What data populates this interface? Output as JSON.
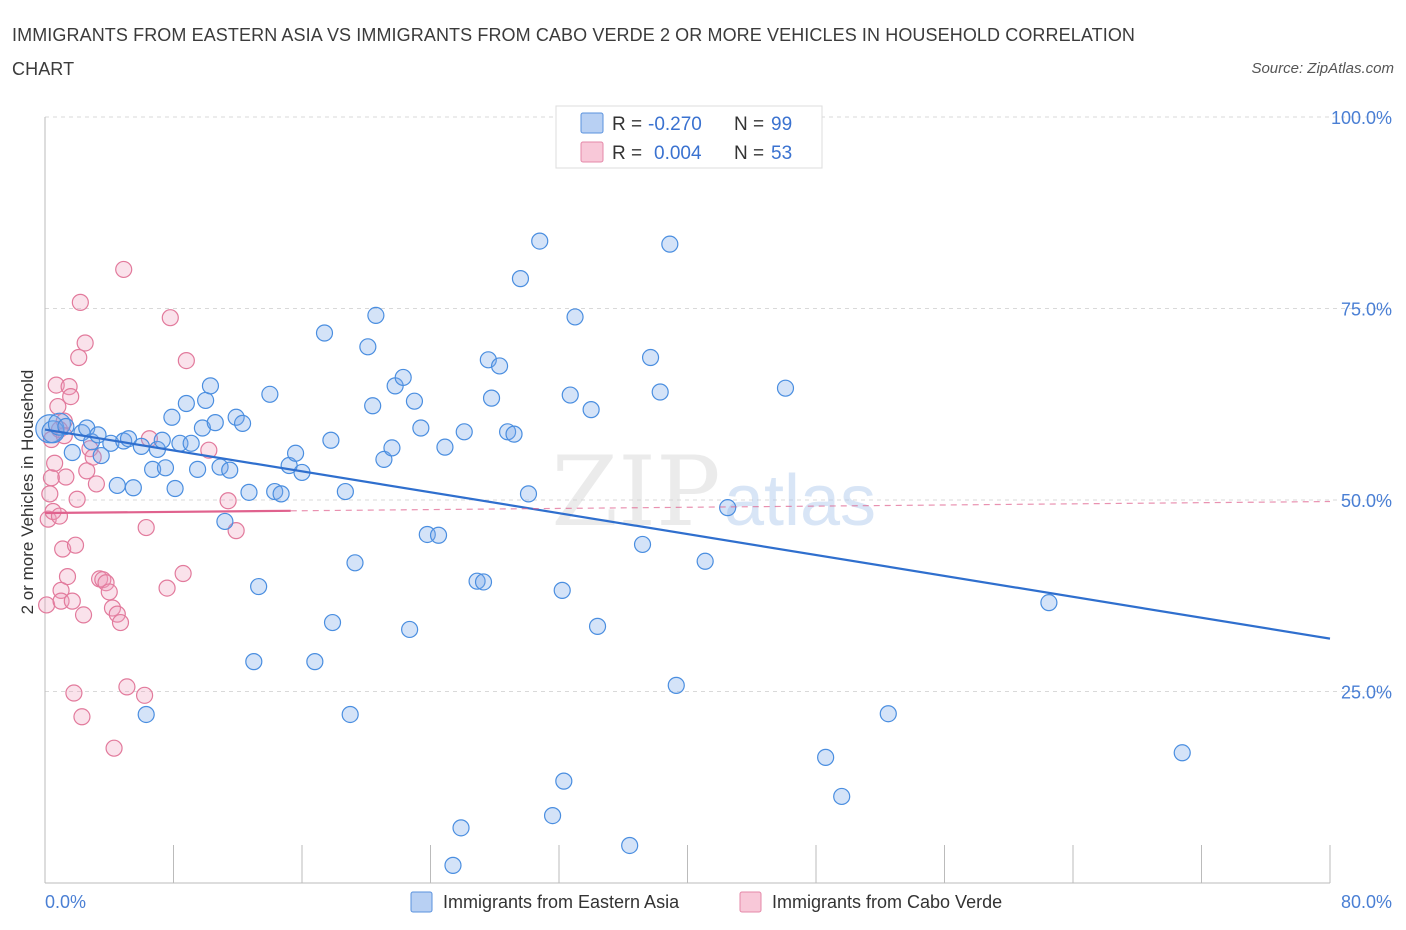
{
  "title": "IMMIGRANTS FROM EASTERN ASIA VS IMMIGRANTS FROM CABO VERDE 2 OR MORE VEHICLES IN HOUSEHOLD CORRELATION CHART",
  "source": "Source: ZipAtlas.com",
  "watermark": {
    "zip": "ZIP",
    "atlas": "atlas"
  },
  "colors": {
    "blue": "#4a8ee0",
    "blue_fill": "rgba(120,168,232,0.32)",
    "blue_line": "#2f6fce",
    "pink": "#e27a9c",
    "pink_fill": "rgba(240,160,188,0.30)",
    "pink_line": "#e0628e",
    "axis_text": "#4a7fd4",
    "grid": "#d9d9d9"
  },
  "stats_legend": [
    {
      "series": "blue",
      "r_label": "R =",
      "r_value": "-0.270",
      "n_label": "N =",
      "n_value": "99"
    },
    {
      "series": "pink",
      "r_label": "R =",
      "r_value": "0.004",
      "n_label": "N =",
      "n_value": "53"
    }
  ],
  "chart_data": {
    "type": "scatter",
    "title": "IMMIGRANTS FROM EASTERN ASIA VS IMMIGRANTS FROM CABO VERDE 2 OR MORE VEHICLES IN HOUSEHOLD CORRELATION CHART",
    "xlabel": "",
    "ylabel": "2 or more Vehicles in Household",
    "xlim": [
      0,
      80
    ],
    "ylim": [
      0,
      100
    ],
    "x_tick_labels": [
      "0.0%",
      "80.0%"
    ],
    "y_ticks": [
      25,
      50,
      75,
      100
    ],
    "y_tick_labels": [
      "25.0%",
      "50.0%",
      "75.0%",
      "100.0%"
    ],
    "grid": "horizontal dashed",
    "legend_position": "bottom-center",
    "series": [
      {
        "name": "Immigrants from Eastern Asia",
        "color": "#4a8ee0",
        "r": -0.27,
        "n": 99,
        "trend": {
          "x": [
            0,
            80
          ],
          "y": [
            59.2,
            31.9
          ]
        },
        "points": [
          [
            0.3,
            59.3
          ],
          [
            0.5,
            58.9
          ],
          [
            0.9,
            59.9
          ],
          [
            1.3,
            59.6
          ],
          [
            1.7,
            56.2
          ],
          [
            2.3,
            58.8
          ],
          [
            2.6,
            59.4
          ],
          [
            2.9,
            57.6
          ],
          [
            3.3,
            58.5
          ],
          [
            3.5,
            55.8
          ],
          [
            4.1,
            57.4
          ],
          [
            4.5,
            51.9
          ],
          [
            4.9,
            57.7
          ],
          [
            5.2,
            58.0
          ],
          [
            5.5,
            51.6
          ],
          [
            6.0,
            57.0
          ],
          [
            6.3,
            22.0
          ],
          [
            6.7,
            54.0
          ],
          [
            7.0,
            56.6
          ],
          [
            7.3,
            57.8
          ],
          [
            7.5,
            54.2
          ],
          [
            7.9,
            60.8
          ],
          [
            8.1,
            51.5
          ],
          [
            8.4,
            57.4
          ],
          [
            8.8,
            62.6
          ],
          [
            9.1,
            57.4
          ],
          [
            9.5,
            54.0
          ],
          [
            9.8,
            59.4
          ],
          [
            10.0,
            63.0
          ],
          [
            10.3,
            64.9
          ],
          [
            10.6,
            60.1
          ],
          [
            10.9,
            54.3
          ],
          [
            11.2,
            47.2
          ],
          [
            11.5,
            53.9
          ],
          [
            11.9,
            60.8
          ],
          [
            12.3,
            60.0
          ],
          [
            12.7,
            51.0
          ],
          [
            13.0,
            28.9
          ],
          [
            13.3,
            38.7
          ],
          [
            14.0,
            63.8
          ],
          [
            14.3,
            51.1
          ],
          [
            14.7,
            50.8
          ],
          [
            15.2,
            54.5
          ],
          [
            15.6,
            56.1
          ],
          [
            16.0,
            53.6
          ],
          [
            16.8,
            28.9
          ],
          [
            17.4,
            71.8
          ],
          [
            17.8,
            57.8
          ],
          [
            17.9,
            34.0
          ],
          [
            18.7,
            51.1
          ],
          [
            19.0,
            22.0
          ],
          [
            19.3,
            41.8
          ],
          [
            20.1,
            70.0
          ],
          [
            20.4,
            62.3
          ],
          [
            20.6,
            74.1
          ],
          [
            21.1,
            55.3
          ],
          [
            21.6,
            56.8
          ],
          [
            21.8,
            64.9
          ],
          [
            22.3,
            66.0
          ],
          [
            22.7,
            33.1
          ],
          [
            23.0,
            62.9
          ],
          [
            23.4,
            59.4
          ],
          [
            23.8,
            45.5
          ],
          [
            24.5,
            45.4
          ],
          [
            24.9,
            56.9
          ],
          [
            25.4,
            2.3
          ],
          [
            25.9,
            7.2
          ],
          [
            26.1,
            58.9
          ],
          [
            26.9,
            39.4
          ],
          [
            27.3,
            39.3
          ],
          [
            27.6,
            68.3
          ],
          [
            27.8,
            63.3
          ],
          [
            28.3,
            67.5
          ],
          [
            28.8,
            58.9
          ],
          [
            29.2,
            58.6
          ],
          [
            29.6,
            78.9
          ],
          [
            30.1,
            50.8
          ],
          [
            30.8,
            83.8
          ],
          [
            31.6,
            8.8
          ],
          [
            32.2,
            38.2
          ],
          [
            32.3,
            13.3
          ],
          [
            32.7,
            63.7
          ],
          [
            33.0,
            73.9
          ],
          [
            34.0,
            61.8
          ],
          [
            34.4,
            33.5
          ],
          [
            36.4,
            4.9
          ],
          [
            37.2,
            44.2
          ],
          [
            37.7,
            68.6
          ],
          [
            38.3,
            64.1
          ],
          [
            38.9,
            83.4
          ],
          [
            39.3,
            25.8
          ],
          [
            41.1,
            42.0
          ],
          [
            42.5,
            49.0
          ],
          [
            46.1,
            64.6
          ],
          [
            48.6,
            16.4
          ],
          [
            49.6,
            11.3
          ],
          [
            52.5,
            22.1
          ],
          [
            62.5,
            36.6
          ],
          [
            70.8,
            17.0
          ]
        ]
      },
      {
        "name": "Immigrants from Cabo Verde",
        "color": "#e27a9c",
        "r": 0.004,
        "n": 53,
        "trend": {
          "x": [
            0,
            80
          ],
          "y": [
            48.3,
            49.8
          ]
        },
        "trend_solid_until_x": 15.3,
        "points": [
          [
            0.1,
            36.3
          ],
          [
            0.2,
            47.5
          ],
          [
            0.3,
            50.8
          ],
          [
            0.4,
            52.9
          ],
          [
            0.5,
            48.5
          ],
          [
            0.6,
            54.8
          ],
          [
            0.7,
            65.0
          ],
          [
            0.8,
            62.2
          ],
          [
            0.9,
            47.9
          ],
          [
            1.0,
            38.2
          ],
          [
            1.0,
            36.8
          ],
          [
            1.1,
            43.6
          ],
          [
            1.2,
            60.3
          ],
          [
            1.3,
            53.0
          ],
          [
            1.4,
            40.0
          ],
          [
            1.5,
            64.8
          ],
          [
            1.6,
            63.5
          ],
          [
            1.7,
            36.8
          ],
          [
            1.8,
            24.8
          ],
          [
            1.9,
            44.1
          ],
          [
            2.0,
            50.1
          ],
          [
            2.1,
            68.6
          ],
          [
            2.2,
            75.8
          ],
          [
            2.3,
            21.7
          ],
          [
            2.4,
            35.0
          ],
          [
            2.5,
            70.5
          ],
          [
            2.6,
            53.8
          ],
          [
            2.8,
            56.7
          ],
          [
            3.0,
            55.6
          ],
          [
            3.2,
            52.1
          ],
          [
            3.4,
            39.7
          ],
          [
            3.6,
            39.6
          ],
          [
            3.8,
            39.2
          ],
          [
            4.0,
            38.0
          ],
          [
            4.2,
            35.9
          ],
          [
            4.3,
            17.6
          ],
          [
            4.5,
            35.1
          ],
          [
            4.7,
            34.0
          ],
          [
            4.9,
            80.1
          ],
          [
            5.1,
            25.6
          ],
          [
            6.2,
            24.5
          ],
          [
            6.3,
            46.4
          ],
          [
            6.5,
            58.0
          ],
          [
            7.6,
            38.5
          ],
          [
            7.8,
            73.8
          ],
          [
            8.6,
            40.4
          ],
          [
            8.8,
            68.2
          ],
          [
            10.2,
            56.5
          ],
          [
            11.4,
            49.9
          ],
          [
            11.9,
            46.0
          ],
          [
            0.4,
            57.9
          ],
          [
            0.9,
            59.2
          ],
          [
            1.2,
            58.4
          ]
        ]
      }
    ]
  }
}
